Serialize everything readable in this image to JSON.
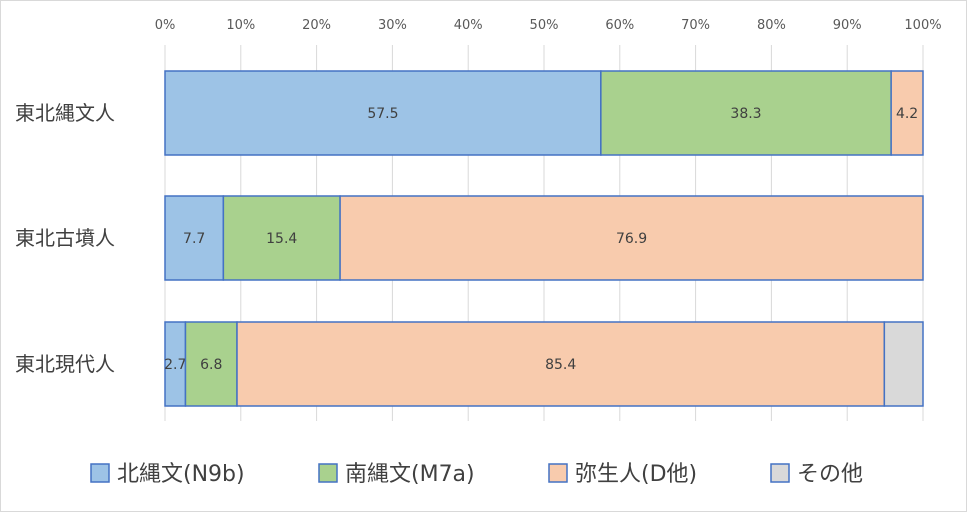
{
  "chart_data": {
    "type": "bar",
    "orientation": "horizontal",
    "stacked": "percent",
    "categories": [
      "東北縄文人",
      "東北古墳人",
      "東北現代人"
    ],
    "series": [
      {
        "name": "北縄文(N9b)",
        "values": [
          57.5,
          7.7,
          2.7
        ],
        "color": "#9dc3e6",
        "border": "#4472c4",
        "labels": [
          "57.5",
          "7.7",
          "2.7"
        ]
      },
      {
        "name": "南縄文(M7a)",
        "values": [
          38.3,
          15.4,
          6.8
        ],
        "color": "#a9d18e",
        "border": "#4472c4",
        "labels": [
          "38.3",
          "15.4",
          "6.8"
        ]
      },
      {
        "name": "弥生人(D他)",
        "values": [
          4.2,
          76.9,
          85.4
        ],
        "color": "#f8cbad",
        "border": "#4472c4",
        "labels": [
          "4.2",
          "76.9",
          "85.4"
        ]
      },
      {
        "name": "その他",
        "values": [
          0,
          0,
          5.1
        ],
        "color": "#d9d9d9",
        "border": "#4472c4",
        "labels": [
          "",
          "",
          ""
        ]
      }
    ],
    "x_ticks": [
      "0%",
      "10%",
      "20%",
      "30%",
      "40%",
      "50%",
      "60%",
      "70%",
      "80%",
      "90%",
      "100%"
    ],
    "xlim": [
      0,
      100
    ],
    "title": "",
    "xlabel": "",
    "ylabel": "",
    "grid": true,
    "legend": "bottom",
    "gridline_color": "#d9d9d9"
  }
}
